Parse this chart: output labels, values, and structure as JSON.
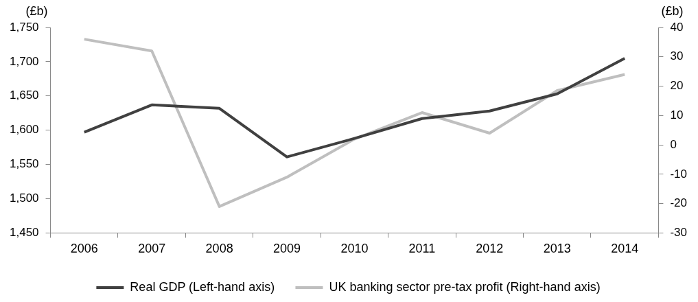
{
  "chart_data": {
    "type": "line",
    "ylabel": "(£b)",
    "y2label": "(£b)",
    "categories": [
      "2006",
      "2007",
      "2008",
      "2009",
      "2010",
      "2011",
      "2012",
      "2013",
      "2014"
    ],
    "series": [
      {
        "name": "Real GDP (Left-hand axis)",
        "color": "#404040",
        "values": [
          1597,
          1637,
          1632,
          1561,
          1588,
          1617,
          1628,
          1653,
          1705
        ]
      },
      {
        "name": "UK banking sector pre-tax profit (Right-hand axis)",
        "color": "#bfbfbf",
        "axis": "y2",
        "values": [
          36,
          32,
          -21,
          -11,
          2,
          11,
          4,
          18.5,
          24
        ]
      }
    ],
    "ylim": [
      1450,
      1750
    ],
    "yticks": [
      {
        "value": 1450,
        "label": "1,450"
      },
      {
        "value": 1500,
        "label": "1,500"
      },
      {
        "value": 1550,
        "label": "1,550"
      },
      {
        "value": 1600,
        "label": "1,600"
      },
      {
        "value": 1650,
        "label": "1,650"
      },
      {
        "value": 1700,
        "label": "1,700"
      },
      {
        "value": 1750,
        "label": "1,750"
      }
    ],
    "y2lim": [
      -30,
      40
    ],
    "y2ticks": [
      -30,
      -20,
      -10,
      0,
      10,
      20,
      30,
      40
    ],
    "grid": false,
    "legend": "bottom",
    "marker": "none",
    "line_style": "solid"
  }
}
